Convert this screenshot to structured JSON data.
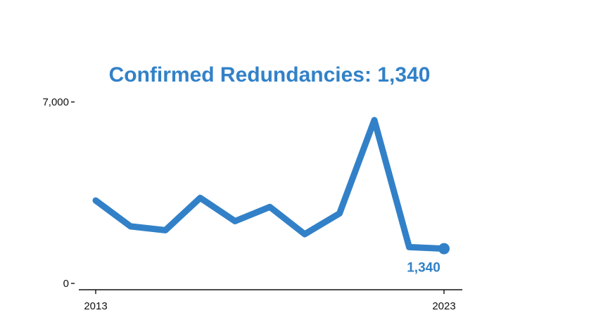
{
  "chart_data": {
    "type": "line",
    "title": "Confirmed Redundancies: 1,340",
    "xlabel": "",
    "ylabel": "",
    "x": [
      2013,
      2014,
      2015,
      2016,
      2017,
      2018,
      2019,
      2020,
      2021,
      2022,
      2023
    ],
    "series": [
      {
        "values": [
          3200,
          2200,
          2050,
          3300,
          2400,
          2950,
          1900,
          2700,
          6300,
          1400,
          1340
        ]
      }
    ],
    "xlim": [
      2013,
      2023
    ],
    "ylim": [
      0,
      7000
    ],
    "x_ticks": [
      "2013",
      "2023"
    ],
    "y_ticks": [
      "0",
      "7,000"
    ],
    "end_value_label": "1,340",
    "grid": false,
    "colors": {
      "line": "#3281c8",
      "title": "#3281c8",
      "axis": "#111111"
    }
  }
}
